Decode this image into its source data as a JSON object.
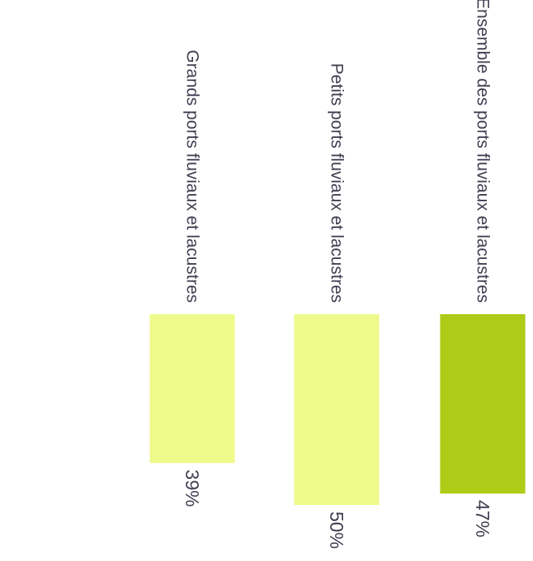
{
  "chart_data": {
    "type": "bar",
    "orientation": "rotated-90-clockwise",
    "categories": [
      "Grands ports fluviaux et lacustres",
      "Petits ports fluviaux et lacustres",
      "Ensemble des ports fluviaux et lacustres"
    ],
    "values": [
      39,
      50,
      47
    ],
    "value_labels": [
      "39%",
      "50%",
      "47%"
    ],
    "title": "",
    "xlabel": "",
    "ylabel": "",
    "colors": [
      "#eefa8c",
      "#eefa8c",
      "#aecb18"
    ],
    "grid": false,
    "legend": "none"
  }
}
